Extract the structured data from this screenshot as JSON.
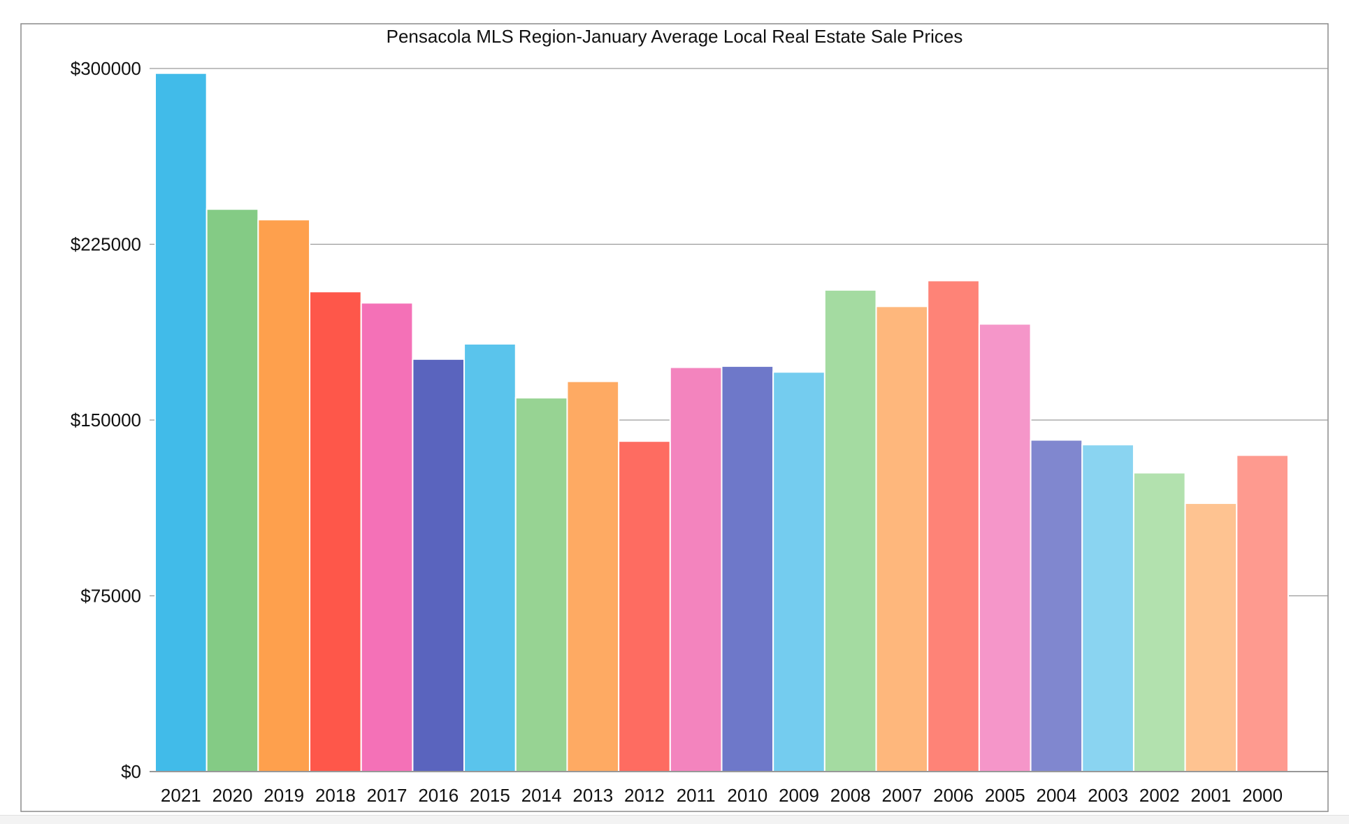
{
  "chart_data": {
    "type": "bar",
    "title": "Pensacola MLS Region-January Average Local Real Estate Sale Prices",
    "xlabel": "",
    "ylabel": "",
    "ylim": [
      0,
      300000
    ],
    "y_ticks": [
      0,
      75000,
      150000,
      225000,
      300000
    ],
    "y_tick_labels": [
      "$0",
      "$75000",
      "$150000",
      "$225000",
      "$300000"
    ],
    "grid": true,
    "legend": "none",
    "categories": [
      "2021",
      "2020",
      "2019",
      "2018",
      "2017",
      "2016",
      "2015",
      "2014",
      "2013",
      "2012",
      "2011",
      "2010",
      "2009",
      "2008",
      "2007",
      "2006",
      "2005",
      "2004",
      "2003",
      "2002",
      "2001",
      "2000"
    ],
    "values": [
      298000,
      240000,
      235500,
      204800,
      200000,
      176000,
      182500,
      159500,
      166500,
      141000,
      172500,
      173000,
      170500,
      205500,
      198500,
      209500,
      191000,
      141500,
      139500,
      127500,
      114500,
      135000
    ],
    "colors": [
      "#41bbe9",
      "#84cb85",
      "#fea04d",
      "#fe574a",
      "#f471b7",
      "#5a64be",
      "#5ac4ec",
      "#97d393",
      "#feaa63",
      "#fe6c61",
      "#f384be",
      "#6e78c9",
      "#74ccef",
      "#a4dba1",
      "#feb77c",
      "#fe8377",
      "#f596c9",
      "#8087cf",
      "#8ad4f1",
      "#b2e1ae",
      "#fec391",
      "#fe9a8f"
    ]
  }
}
